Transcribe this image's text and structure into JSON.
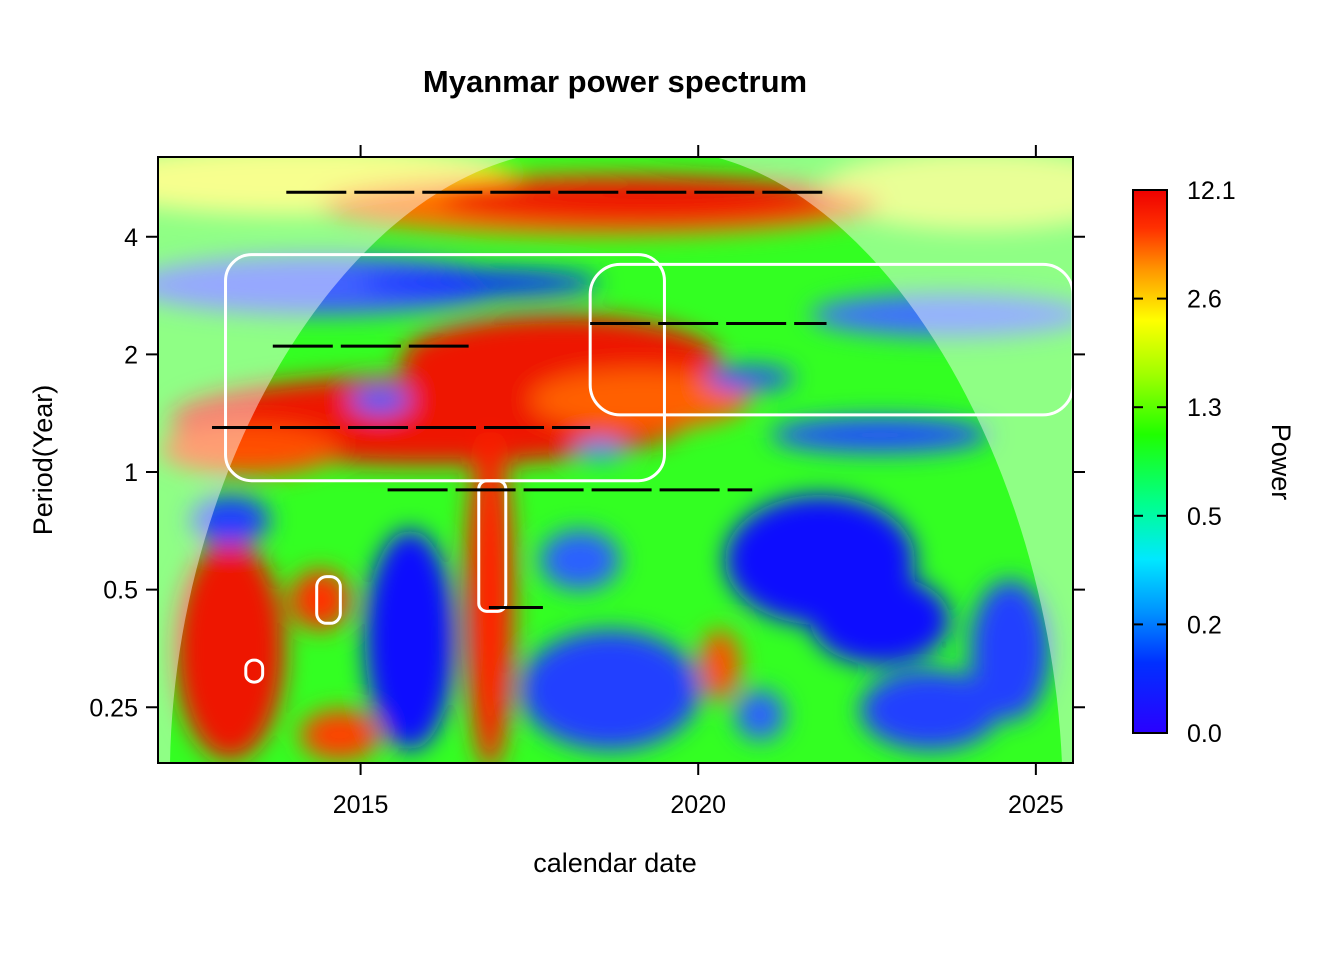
{
  "chart_data": {
    "type": "heatmap",
    "title": "Myanmar power spectrum",
    "xlabel": "calendar date",
    "ylabel": "Period(Year)",
    "colorbar_label": "Power",
    "x_ticks": [
      2015,
      2020,
      2025
    ],
    "x_tick_labels": [
      "2015",
      "2020",
      "2025"
    ],
    "xlim": [
      2012.0,
      2025.55
    ],
    "y_scale": "log2",
    "y_ticks": [
      0.25,
      0.5,
      1,
      2,
      4
    ],
    "y_tick_labels": [
      "0.25",
      "0.5",
      "1",
      "2",
      "4"
    ],
    "ylim": [
      0.18,
      6.4
    ],
    "colorbar_ticks": [
      "0.0",
      "0.2",
      "0.5",
      "1.3",
      "2.6",
      "12.1"
    ],
    "colorbar_max": 12.1,
    "cone_of_influence": "shaded outside",
    "high_power_regions": [
      {
        "x": 2017.2,
        "period": 1.9,
        "power": 12.1,
        "note": "broad band ~1-3 yr, 2013-2020"
      },
      {
        "x": 2019.5,
        "period": 5.2,
        "power": 8.0,
        "note": "long-period band ~5 yr"
      },
      {
        "x": 2013.2,
        "period": 0.35,
        "power": 11.0,
        "note": "short-period burst 2012-2014"
      },
      {
        "x": 2016.9,
        "period": 0.45,
        "power": 10.0,
        "note": "vertical ridge 2016-2017"
      }
    ],
    "low_power_regions": [
      {
        "x": 2015.6,
        "period": 0.35,
        "power": 0.05
      },
      {
        "x": 2022.5,
        "period": 0.55,
        "power": 0.05
      },
      {
        "x": 2016.0,
        "period": 3.8,
        "power": 0.1
      }
    ],
    "ridge_lines": [
      {
        "period": 5.2,
        "x_start": 2013.9,
        "x_end": 2021.9
      },
      {
        "period": 2.1,
        "x_start": 2013.7,
        "x_end": 2016.6
      },
      {
        "period": 2.4,
        "x_start": 2018.4,
        "x_end": 2021.9
      },
      {
        "period": 1.3,
        "x_start": 2012.8,
        "x_end": 2018.4
      },
      {
        "period": 0.9,
        "x_start": 2015.4,
        "x_end": 2020.8
      },
      {
        "period": 0.45,
        "x_start": 2016.9,
        "x_end": 2017.7
      }
    ]
  }
}
